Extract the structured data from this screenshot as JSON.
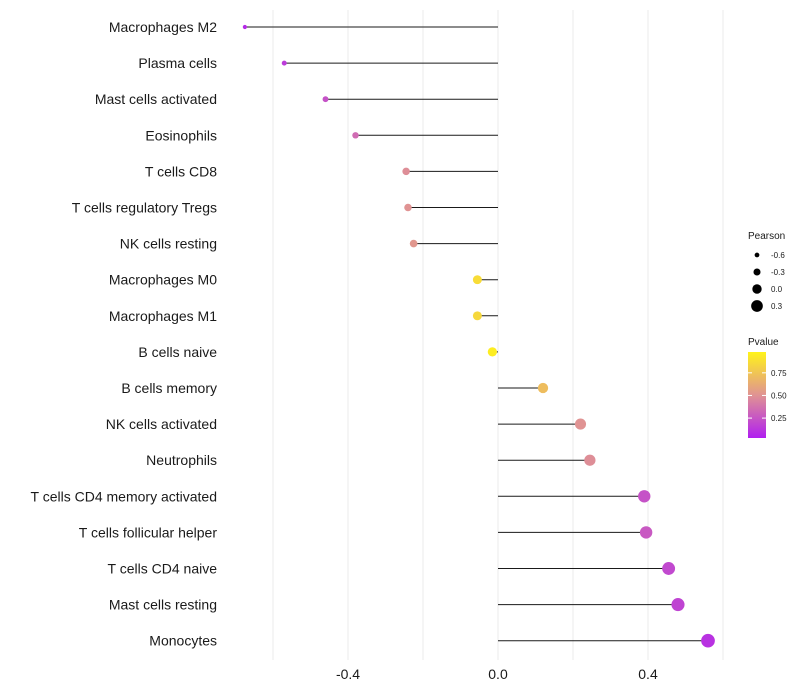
{
  "chart_data": {
    "type": "lollipop",
    "title": "",
    "xlabel": "",
    "ylabel": "",
    "xlim": [
      -0.66,
      0.6
    ],
    "xticks": [
      -0.4,
      0.0,
      0.4
    ],
    "xtick_labels": [
      "-0.4",
      "0.0",
      "0.4"
    ],
    "grid": true,
    "categories": [
      "Macrophages M2",
      "Plasma cells",
      "Mast cells activated",
      "Eosinophils",
      "T cells CD8",
      "T cells regulatory  Tregs",
      "NK cells resting",
      "Macrophages M0",
      "Macrophages M1",
      "B cells naive",
      "B cells memory",
      "NK cells activated",
      "Neutrophils",
      "T cells CD4 memory activated",
      "T cells follicular helper",
      "T cells CD4 naive",
      "Mast cells resting",
      "Monocytes"
    ],
    "pearson": [
      -0.675,
      -0.57,
      -0.46,
      -0.38,
      -0.245,
      -0.24,
      -0.225,
      -0.055,
      -0.055,
      -0.015,
      0.12,
      0.22,
      0.245,
      0.39,
      0.395,
      0.455,
      0.48,
      0.56
    ],
    "pvalue": [
      0.05,
      0.12,
      0.22,
      0.33,
      0.48,
      0.5,
      0.52,
      0.88,
      0.86,
      0.97,
      0.72,
      0.5,
      0.48,
      0.22,
      0.25,
      0.18,
      0.16,
      0.08
    ],
    "legend": {
      "size": {
        "title": "Pearson",
        "labels": [
          "-0.6",
          "-0.3",
          "0.0",
          "0.3"
        ],
        "values": [
          -0.6,
          -0.3,
          0.0,
          0.3
        ]
      },
      "color": {
        "title": "Pvalue",
        "labels": [
          "0.75",
          "0.50",
          "0.25"
        ],
        "values": [
          0.75,
          0.5,
          0.25
        ],
        "range": [
          0.03,
          0.98
        ]
      },
      "position": "right"
    },
    "colors": {
      "low": "#b01ff0",
      "mid": "#e09393",
      "high": "#fff31a",
      "stem": "#1a1a1a",
      "grid": "#ebebeb"
    }
  }
}
